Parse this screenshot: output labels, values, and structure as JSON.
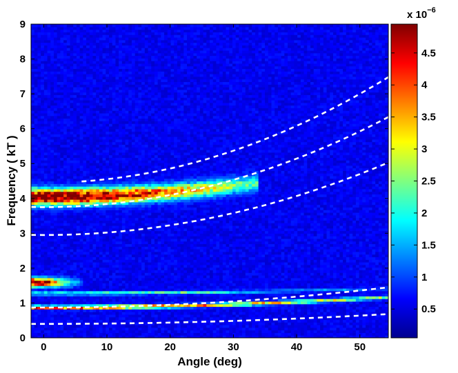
{
  "chart_data": {
    "type": "heatmap",
    "title": "",
    "xlabel": "Angle (deg)",
    "ylabel": "Frequency ( kT )",
    "xlim": [
      -2,
      54.5
    ],
    "ylim": [
      0,
      9
    ],
    "x_ticks": [
      "0",
      "10",
      "20",
      "30",
      "40",
      "50"
    ],
    "x_tick_values": [
      0,
      10,
      20,
      30,
      40,
      50
    ],
    "y_ticks": [
      "0",
      "1",
      "2",
      "3",
      "4",
      "5",
      "6",
      "7",
      "8",
      "9"
    ],
    "y_tick_values": [
      0,
      1,
      2,
      3,
      4,
      5,
      6,
      7,
      8,
      9
    ],
    "colorbar": {
      "multiplier_base": "x 10",
      "multiplier_exp": "−6",
      "min": 0.05,
      "max": 4.95,
      "ticks": [
        "0.5",
        "1",
        "1.5",
        "2",
        "2.5",
        "3",
        "3.5",
        "4",
        "4.5"
      ],
      "tick_values": [
        0.5,
        1.0,
        1.5,
        2.0,
        2.5,
        3.0,
        3.5,
        4.0,
        4.5
      ],
      "colormap": "jet"
    },
    "background_level": 0.6,
    "intensity_features": [
      {
        "name": "band-4kT",
        "x_start": -2,
        "x_end": 34,
        "f0": 4.05,
        "curve": 0.00035,
        "width": 0.22,
        "peak": 4.9,
        "fade": 30
      },
      {
        "name": "band-1.6kT",
        "x_start": -2,
        "x_end": 6,
        "f0": 1.6,
        "curve": 0,
        "width": 0.12,
        "peak": 4.9,
        "fade": 5
      },
      {
        "name": "band-0.9kT",
        "x_start": -2,
        "x_end": 54.5,
        "f0": 0.88,
        "curve": 0.0001,
        "width": 0.05,
        "peak": 3.8,
        "fade": 60
      },
      {
        "name": "band-1.3kT",
        "x_start": -2,
        "x_end": 54.5,
        "f0": 1.28,
        "curve": 5e-05,
        "width": 0.04,
        "peak": 2.2,
        "fade": 40
      }
    ],
    "dashed_curves": [
      {
        "f0": 0.4,
        "k": 9.5e-05
      },
      {
        "f0": 0.87,
        "k": 0.000195
      },
      {
        "f0": 2.95,
        "k": 0.0007
      },
      {
        "f0": 3.75,
        "k": 0.00087
      },
      {
        "f0": 4.45,
        "k": 0.00102
      }
    ],
    "dashed_curves_start_x": [
      -2,
      -2,
      -2,
      -2,
      6
    ]
  }
}
